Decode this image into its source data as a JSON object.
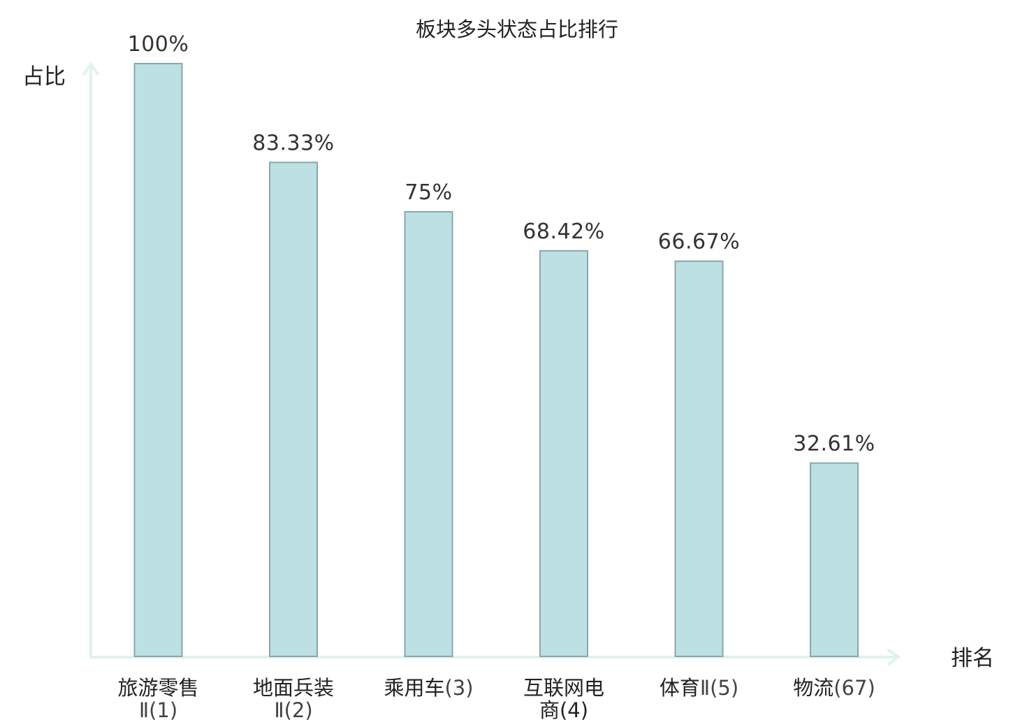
{
  "chart_data": {
    "type": "bar",
    "title": "板块多头状态占比排行",
    "ylabel": "占比",
    "xlabel": "排名",
    "ylim": [
      0,
      100
    ],
    "grid": false,
    "legend": "none",
    "bar_color": "#bde0e3",
    "bar_border_color": "#86a8ac",
    "axis_color": "#e0f2ef",
    "highlight_color": "#e00000",
    "categories": [
      {
        "name_lines": [
          "旅游零售"
        ],
        "rank_line": "Ⅱ(1)",
        "highlight": false
      },
      {
        "name_lines": [
          "地面兵装"
        ],
        "rank_line": "Ⅱ(2)",
        "highlight": false
      },
      {
        "name_lines": [
          "乘用车"
        ],
        "rank_line": "(3)",
        "inline": true,
        "highlight": false
      },
      {
        "name_lines": [
          "互联网电"
        ],
        "rank_line": "商(4)",
        "rank_has_name_prefix": true,
        "highlight": false
      },
      {
        "name_lines": [
          "体育"
        ],
        "rank_line": "Ⅱ(5)",
        "inline": true,
        "highlight": false
      },
      {
        "name_lines": [
          "物流"
        ],
        "rank_line": "(67)",
        "inline": true,
        "highlight": true
      }
    ],
    "values": [
      100,
      83.33,
      75,
      68.42,
      66.67,
      32.61
    ],
    "value_labels": [
      "100%",
      "83.33%",
      "75%",
      "68.42%",
      "66.67%",
      "32.61%"
    ]
  }
}
